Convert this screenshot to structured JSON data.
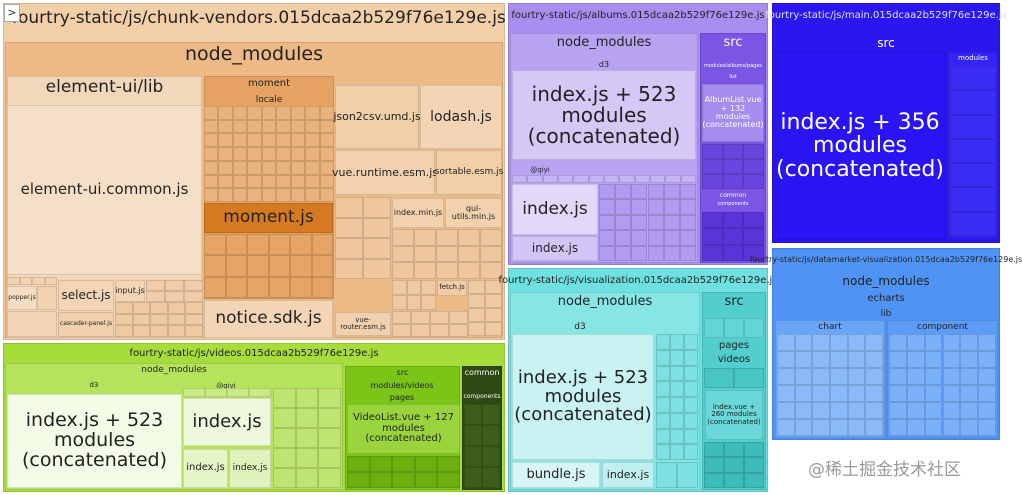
{
  "sidebar_toggle": ">",
  "bundles": [
    {
      "title": "fourtry-static/js/chunk-vendors.015dcaa2b529f76e129e.js",
      "labels": [
        "node_modules",
        "element-ui/lib",
        "element-ui.common.js",
        "moment",
        "locale",
        "moment.js",
        "notice.sdk.js",
        "json2csv.umd.js",
        "lodash.js",
        "vue.runtime.esm.js",
        "sortable.esm.js",
        "select.js",
        "index.min.js",
        "qui-utils.min.js",
        "input.js",
        "popper.js",
        "cascader-panel.js",
        "fetch.js",
        "vue-router.esm.js"
      ]
    },
    {
      "title": "fourtry-static/js/albums.015dcaa2b529f76e129e.js",
      "labels": [
        "node_modules",
        "d3",
        "index.js + 523 modules (concatenated)",
        "@qiyi",
        "index.js",
        "index.js",
        "src",
        "modules/albums/pages",
        "list",
        "AlbumList.vue + 132 modules (concatenated)",
        "common",
        "components"
      ]
    },
    {
      "title": "fourtry-static/js/main.015dcaa2b529f76e129e.js",
      "labels": [
        "src",
        "index.js + 356 modules (concatenated)",
        "modules"
      ]
    },
    {
      "title": "fourtry-static/js/visualization.015dcaa2b529f76e129e.js",
      "labels": [
        "node_modules",
        "d3",
        "index.js + 523 modules (concatenated)",
        "bundle.js",
        "index.js",
        "src",
        "pages",
        "videos",
        "index.vue + 260 modules (concatenated)"
      ]
    },
    {
      "title": "fourtry-static/js/datamarket-visualization.015dcaa2b529f76e129e.js",
      "labels": [
        "node_modules",
        "echarts",
        "lib",
        "chart",
        "component"
      ]
    },
    {
      "title": "fourtry-static/js/videos.015dcaa2b529f76e129e.js",
      "labels": [
        "node_modules",
        "d3",
        "index.js + 523 modules (concatenated)",
        "@qiyi",
        "index.js",
        "index.js",
        "index.js",
        "src",
        "modules/videos",
        "pages",
        "VideoList.vue + 127 modules (concatenated)",
        "common",
        "components"
      ]
    }
  ],
  "watermark": "@稀土掘金技术社区"
}
